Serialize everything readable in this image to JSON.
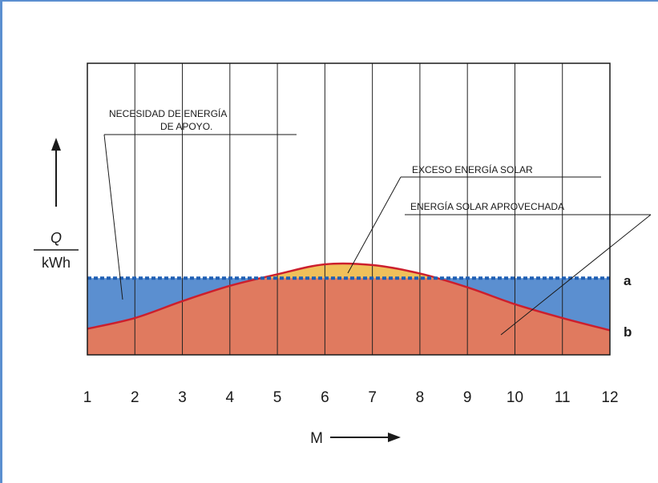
{
  "colors": {
    "frame": "#5b8fd0",
    "demand_fill": "#5b8fd0",
    "solar_used_fill": "#e07a5f",
    "excess_fill": "#f0c05a",
    "solar_curve": "#cc1f2d",
    "demand_line": "#1f5fb4"
  },
  "chart_data": {
    "type": "area",
    "x": [
      1,
      2,
      3,
      4,
      5,
      6,
      7,
      8,
      9,
      10,
      11,
      12
    ],
    "x_tick_labels": [
      "1",
      "2",
      "3",
      "4",
      "5",
      "6",
      "7",
      "8",
      "9",
      "10",
      "11",
      "12"
    ],
    "xlabel": "M",
    "ylabel_top": "Q",
    "ylabel_bottom": "kWh",
    "series": [
      {
        "name": "a",
        "values": [
          1.0,
          1.0,
          1.0,
          1.0,
          1.0,
          1.0,
          1.0,
          1.0,
          1.0,
          1.0,
          1.0,
          1.0
        ]
      },
      {
        "name": "b",
        "values": [
          0.34,
          0.48,
          0.7,
          0.9,
          1.05,
          1.18,
          1.17,
          1.06,
          0.88,
          0.66,
          0.48,
          0.32
        ]
      }
    ],
    "ylim": [
      0,
      3.8
    ],
    "grid": true,
    "annotations": {
      "demand_line1": "NECESIDAD DE ENERGÍA",
      "demand_line2": "DE APOYO.",
      "excess": "EXCESO ENERGÍA SOLAR",
      "used": "ENERGÍA SOLAR APROVECHADA"
    }
  }
}
